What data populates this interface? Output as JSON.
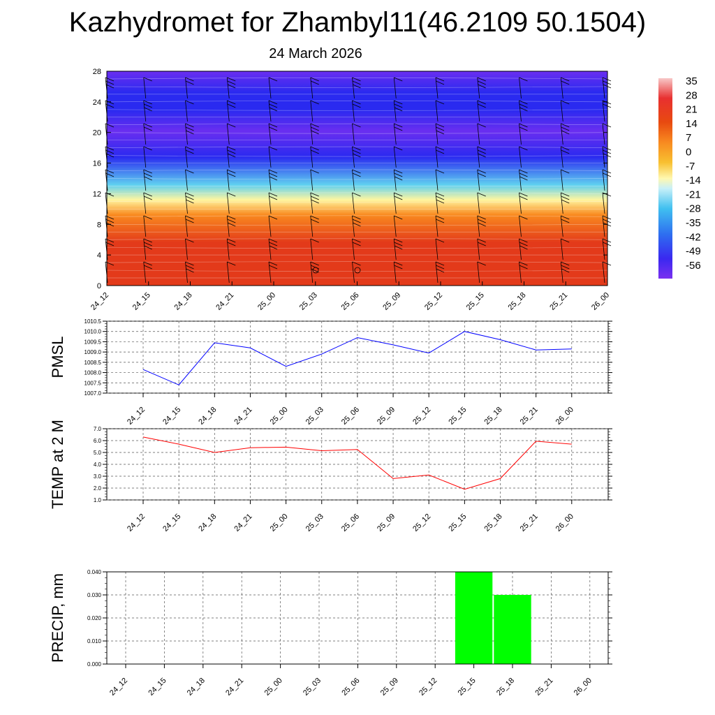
{
  "title": "Kazhydromet for Zhambyl11(46.2109 50.1504)",
  "subtitle": "24 March 2026",
  "time_labels": [
    "24_12",
    "24_15",
    "24_18",
    "24_21",
    "25_00",
    "25_03",
    "25_06",
    "25_09",
    "25_12",
    "25_15",
    "25_18",
    "25_21",
    "26_00"
  ],
  "chart_data": [
    {
      "type": "heatmap",
      "name": "cross-section",
      "ylim": [
        0,
        28
      ],
      "yticks": [
        "0",
        "4",
        "8",
        "12",
        "16",
        "20",
        "24",
        "28"
      ],
      "colorbar_labels": [
        "35",
        "28",
        "21",
        "14",
        "7",
        "0",
        "-7",
        "-14",
        "-21",
        "-28",
        "-35",
        "-42",
        "-49",
        "-56"
      ],
      "colors": {
        "warm": "#e33a1a",
        "orange": "#f98a1f",
        "yellow": "#fff6a0",
        "cyan": "#5fd0f0",
        "blue": "#2a2af0",
        "violet": "#6a2ef0"
      }
    },
    {
      "type": "line",
      "name": "PMSL",
      "ylabel": "PMSL",
      "ylim": [
        1007.0,
        1010.5
      ],
      "yticks": [
        "1010.5",
        "1010.0",
        "1009.5",
        "1009.0",
        "1008.5",
        "1008.0",
        "1007.5",
        "1007.0"
      ],
      "values": [
        1008.15,
        1007.4,
        1009.45,
        1009.2,
        1008.3,
        1008.9,
        1009.7,
        1009.35,
        1008.95,
        1010.0,
        1009.6,
        1009.1,
        1009.15
      ],
      "color": "#0000ff"
    },
    {
      "type": "line",
      "name": "TEMP at 2 M",
      "ylabel": "TEMP at 2 M",
      "ylim": [
        1.0,
        7.0
      ],
      "yticks": [
        "7.0",
        "6.0",
        "5.0",
        "4.0",
        "3.0",
        "2.0",
        "1.0"
      ],
      "values": [
        6.3,
        5.7,
        5.0,
        5.4,
        5.45,
        5.15,
        5.25,
        2.8,
        3.1,
        1.9,
        2.8,
        5.95,
        5.7
      ],
      "color": "#ff0000"
    },
    {
      "type": "bar",
      "name": "PRECIP, mm",
      "ylabel": "PRECIP, mm",
      "ylim": [
        0.0,
        0.04
      ],
      "yticks": [
        "0.040",
        "0.030",
        "0.020",
        "0.010",
        "0.000"
      ],
      "values": [
        0,
        0,
        0,
        0,
        0,
        0,
        0,
        0,
        0,
        0.04,
        0.03,
        0,
        0
      ],
      "color": "#00ff00"
    }
  ]
}
